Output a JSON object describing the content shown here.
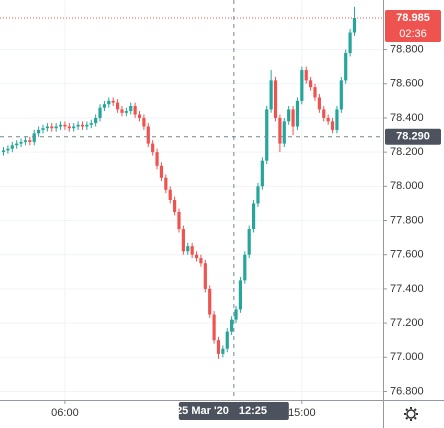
{
  "chart_data": {
    "type": "candlestick",
    "x": [
      220,
      230,
      240,
      250,
      260,
      270,
      280,
      290,
      300,
      310,
      320,
      330,
      340,
      350,
      360,
      370,
      380,
      390,
      400,
      410,
      420,
      430,
      440,
      450,
      460,
      470,
      480,
      490,
      500,
      510,
      520,
      530,
      540,
      550,
      560,
      570,
      580,
      590,
      600,
      610,
      620,
      630,
      640,
      650,
      660,
      670,
      680,
      690,
      700,
      710,
      720,
      730,
      740,
      750,
      760,
      770,
      780,
      790,
      800,
      810,
      820,
      830,
      840,
      850,
      860,
      870,
      880,
      890,
      900,
      910,
      920,
      930,
      940,
      950,
      960,
      970,
      980,
      990,
      1000,
      1010,
      1020
    ],
    "open": [
      78.2,
      78.21,
      78.22,
      78.24,
      78.25,
      78.26,
      78.27,
      78.26,
      78.31,
      78.33,
      78.34,
      78.35,
      78.34,
      78.35,
      78.36,
      78.35,
      78.34,
      78.35,
      78.36,
      78.35,
      78.36,
      78.37,
      78.4,
      78.46,
      78.48,
      78.5,
      78.49,
      78.45,
      78.43,
      78.44,
      78.47,
      78.42,
      78.4,
      78.35,
      78.25,
      78.2,
      78.12,
      78.05,
      77.98,
      77.92,
      77.85,
      77.75,
      77.62,
      77.65,
      77.6,
      77.58,
      77.55,
      77.4,
      77.25,
      77.1,
      77.02,
      77.05,
      77.15,
      77.22,
      77.28,
      77.45,
      77.6,
      77.75,
      77.9,
      78.0,
      78.15,
      78.45,
      78.62,
      78.4,
      78.25,
      78.38,
      78.45,
      78.35,
      78.5,
      78.68,
      78.62,
      78.58,
      78.52,
      78.45,
      78.4,
      78.38,
      78.33,
      78.45,
      78.62,
      78.78,
      78.9
    ],
    "high": [
      78.23,
      78.24,
      78.26,
      78.27,
      78.28,
      78.29,
      78.29,
      78.33,
      78.35,
      78.36,
      78.37,
      78.37,
      78.37,
      78.38,
      78.38,
      78.37,
      78.37,
      78.38,
      78.38,
      78.38,
      78.39,
      78.42,
      78.48,
      78.5,
      78.52,
      78.52,
      78.51,
      78.47,
      78.46,
      78.49,
      78.49,
      78.44,
      78.42,
      78.37,
      78.27,
      78.22,
      78.14,
      78.07,
      78.0,
      77.94,
      77.87,
      77.77,
      77.67,
      77.67,
      77.62,
      77.6,
      77.57,
      77.42,
      77.27,
      77.12,
      77.07,
      77.17,
      77.24,
      77.3,
      77.47,
      77.62,
      77.77,
      77.92,
      78.02,
      78.17,
      78.47,
      78.68,
      78.64,
      78.42,
      78.4,
      78.47,
      78.47,
      78.52,
      78.7,
      78.7,
      78.64,
      78.6,
      78.54,
      78.47,
      78.42,
      78.4,
      78.47,
      78.64,
      78.8,
      78.92,
      79.05
    ],
    "low": [
      78.18,
      78.19,
      78.2,
      78.22,
      78.23,
      78.24,
      78.24,
      78.24,
      78.29,
      78.31,
      78.32,
      78.32,
      78.32,
      78.33,
      78.33,
      78.32,
      78.32,
      78.33,
      78.33,
      78.33,
      78.34,
      78.35,
      78.38,
      78.44,
      78.46,
      78.47,
      78.43,
      78.41,
      78.41,
      78.42,
      78.4,
      78.38,
      78.33,
      78.23,
      78.18,
      78.1,
      78.03,
      77.96,
      77.9,
      77.83,
      77.73,
      77.6,
      77.6,
      77.58,
      77.56,
      77.53,
      77.38,
      77.23,
      77.08,
      76.99,
      77.0,
      77.03,
      77.13,
      77.2,
      77.26,
      77.43,
      77.58,
      77.73,
      77.88,
      77.98,
      78.13,
      78.43,
      78.38,
      78.2,
      78.23,
      78.36,
      78.3,
      78.33,
      78.48,
      78.6,
      78.56,
      78.5,
      78.43,
      78.38,
      78.36,
      78.31,
      78.31,
      78.43,
      78.6,
      78.76,
      78.88
    ],
    "close": [
      78.21,
      78.22,
      78.24,
      78.25,
      78.26,
      78.27,
      78.26,
      78.31,
      78.33,
      78.34,
      78.35,
      78.34,
      78.35,
      78.36,
      78.35,
      78.34,
      78.35,
      78.36,
      78.35,
      78.36,
      78.37,
      78.4,
      78.46,
      78.48,
      78.5,
      78.49,
      78.45,
      78.43,
      78.44,
      78.47,
      78.42,
      78.4,
      78.35,
      78.25,
      78.2,
      78.12,
      78.05,
      77.98,
      77.92,
      77.85,
      77.75,
      77.62,
      77.65,
      77.6,
      77.58,
      77.55,
      77.4,
      77.25,
      77.1,
      77.02,
      77.05,
      77.15,
      77.22,
      77.28,
      77.45,
      77.6,
      77.75,
      77.9,
      78.0,
      78.15,
      78.45,
      78.62,
      78.4,
      78.25,
      78.38,
      78.45,
      78.35,
      78.5,
      78.68,
      78.62,
      78.58,
      78.52,
      78.45,
      78.4,
      78.38,
      78.33,
      78.45,
      78.62,
      78.78,
      78.9,
      78.985
    ],
    "up_color": "#26a69a",
    "down_color": "#ef5350",
    "xlim": [
      212,
      1085
    ],
    "xticks": [
      {
        "value": 360,
        "label": "06:00"
      },
      {
        "value": 900,
        "label": "15:00"
      }
    ],
    "ylim": [
      76.75,
      79.09
    ],
    "yticks": [
      {
        "value": 76.8,
        "label": "76.800"
      },
      {
        "value": 77.0,
        "label": "77.000"
      },
      {
        "value": 77.2,
        "label": "77.200"
      },
      {
        "value": 77.4,
        "label": "77.400"
      },
      {
        "value": 77.6,
        "label": "77.600"
      },
      {
        "value": 77.8,
        "label": "77.800"
      },
      {
        "value": 78.0,
        "label": "78.000"
      },
      {
        "value": 78.2,
        "label": "78.200"
      },
      {
        "value": 78.4,
        "label": "78.400"
      },
      {
        "value": 78.6,
        "label": "78.600"
      },
      {
        "value": 78.8,
        "label": "78.800"
      }
    ],
    "grid": true,
    "last_price": {
      "value": 78.985,
      "label": "78.985",
      "countdown": "02:36"
    },
    "crosshair": {
      "x": 745,
      "price": {
        "value": 78.29,
        "label": "78.290"
      },
      "date": "25 Mar '20",
      "time": "12:25"
    }
  }
}
